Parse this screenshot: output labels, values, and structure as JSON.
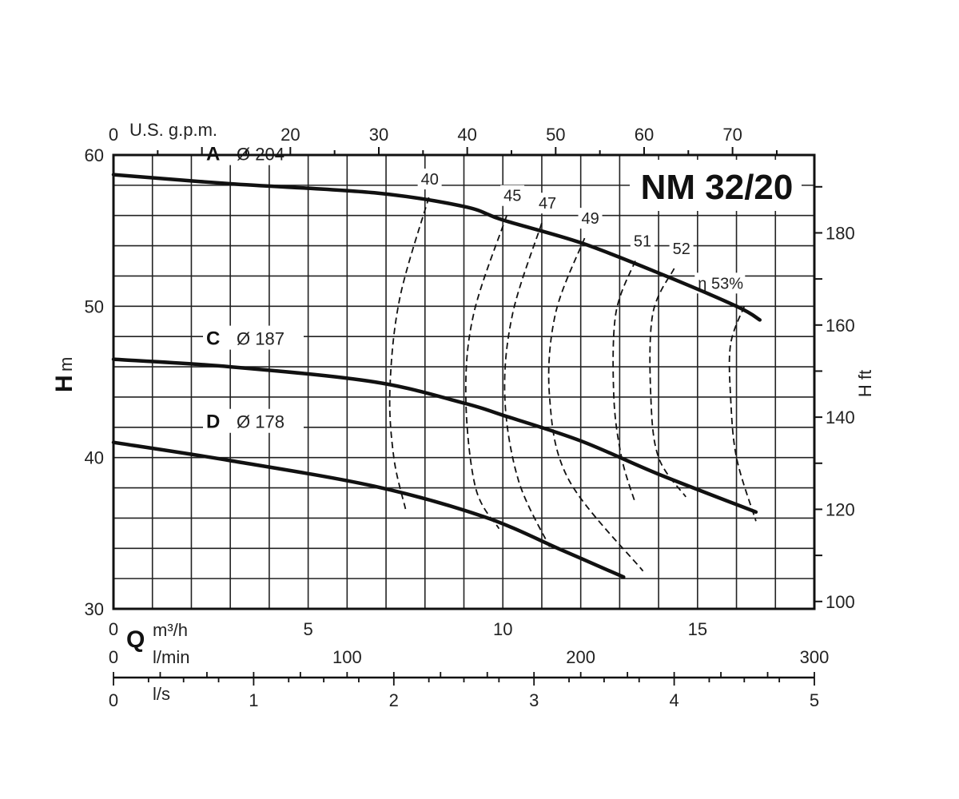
{
  "chart_data": {
    "type": "line",
    "title": "NM 32/20",
    "q_label": "Q",
    "x_axes": {
      "m3h": {
        "unit": "m³/h",
        "ticks": [
          "0",
          "5",
          "10",
          "15"
        ],
        "range": [
          0,
          18
        ]
      },
      "lmin": {
        "unit": "l/min",
        "ticks": [
          "0",
          "100",
          "200",
          "300"
        ],
        "range": [
          0,
          300
        ]
      },
      "ls": {
        "unit": "l/s",
        "ticks": [
          "0",
          "1",
          "2",
          "3",
          "4",
          "5"
        ],
        "range": [
          0,
          5
        ]
      },
      "usgpm": {
        "unit": "U.S. g.p.m.",
        "ticks": [
          "0",
          "20",
          "30",
          "40",
          "50",
          "60",
          "70"
        ],
        "range": [
          0,
          79.25
        ]
      }
    },
    "y_axes": {
      "left": {
        "label_bold": "H",
        "label_unit": "m",
        "ticks": [
          "30",
          "40",
          "50",
          "60"
        ],
        "range": [
          30,
          60
        ]
      },
      "right": {
        "label": "H ft",
        "ticks": [
          "100",
          "120",
          "140",
          "160",
          "180"
        ],
        "range": [
          98.4,
          196.9
        ]
      }
    },
    "grid": true,
    "series": [
      {
        "name": "A",
        "label": "Ø 204",
        "x": [
          0,
          3,
          6.7,
          9,
          10,
          12,
          14,
          16,
          16.6
        ],
        "y": [
          58.7,
          58.1,
          57.5,
          56.6,
          55.7,
          54.2,
          52.2,
          50.0,
          49.1
        ]
      },
      {
        "name": "C",
        "label": "Ø 187",
        "x": [
          0,
          3,
          6.7,
          9,
          10,
          12,
          14,
          16.5
        ],
        "y": [
          46.5,
          46.0,
          45.0,
          43.6,
          42.8,
          41.1,
          38.9,
          36.4
        ]
      },
      {
        "name": "D",
        "label": "Ø 178",
        "x": [
          0,
          3,
          6.7,
          9.5,
          11.5,
          13.1
        ],
        "y": [
          41.0,
          39.8,
          38.1,
          36.1,
          33.9,
          32.1
        ]
      }
    ],
    "efficiency": [
      {
        "label": "40",
        "points": [
          [
            8.1,
            57.2
          ],
          [
            7.35,
            50.5
          ],
          [
            7.1,
            44.5
          ],
          [
            7.2,
            40.0
          ],
          [
            7.5,
            36.6
          ]
        ]
      },
      {
        "label": "45",
        "points": [
          [
            10.1,
            56.0
          ],
          [
            9.25,
            49.5
          ],
          [
            9.05,
            44.0
          ],
          [
            9.3,
            38.0
          ],
          [
            9.9,
            35.3
          ]
        ]
      },
      {
        "label": "47",
        "points": [
          [
            11.0,
            55.5
          ],
          [
            10.25,
            49.5
          ],
          [
            10.05,
            44.0
          ],
          [
            10.4,
            38.5
          ],
          [
            11.2,
            34.1
          ]
        ]
      },
      {
        "label": "49",
        "points": [
          [
            12.1,
            54.5
          ],
          [
            11.35,
            49.5
          ],
          [
            11.2,
            44.0
          ],
          [
            11.7,
            38.5
          ],
          [
            13.6,
            32.5
          ]
        ]
      },
      {
        "label": "51",
        "points": [
          [
            13.4,
            53.0
          ],
          [
            12.9,
            49.5
          ],
          [
            12.85,
            44.0
          ],
          [
            13.05,
            40.0
          ],
          [
            13.4,
            37.0
          ]
        ]
      },
      {
        "label": "52",
        "points": [
          [
            14.4,
            52.5
          ],
          [
            13.85,
            49.5
          ],
          [
            13.8,
            44.0
          ],
          [
            14.0,
            40.0
          ],
          [
            14.7,
            37.4
          ]
        ]
      },
      {
        "label": "η 53%",
        "points": [
          [
            16.2,
            50.0
          ],
          [
            15.85,
            47.5
          ],
          [
            15.85,
            44.0
          ],
          [
            16.0,
            40.0
          ],
          [
            16.5,
            35.8
          ]
        ]
      }
    ]
  }
}
